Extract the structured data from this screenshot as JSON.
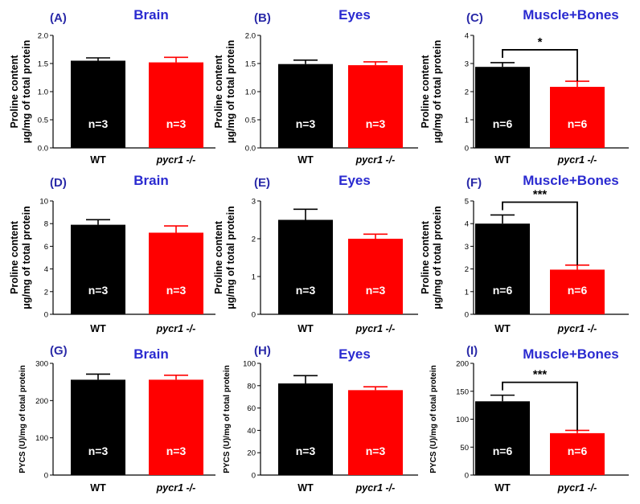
{
  "figure": {
    "categories": [
      "WT",
      "pycr1 -/-"
    ],
    "bar_colors": [
      "#000000",
      "#ff0000"
    ]
  },
  "chart_data": [
    {
      "panel": "(A)",
      "type": "bar",
      "title": "Brain",
      "ylabel": [
        "Proline content",
        "μg/mg of total protein"
      ],
      "categories": [
        "WT",
        "pycr1 -/-"
      ],
      "values": [
        1.55,
        1.52
      ],
      "errors": [
        0.05,
        0.09
      ],
      "n_labels": [
        "n=3",
        "n=3"
      ],
      "ylim": [
        0,
        2
      ],
      "yticks": [
        0,
        0.5,
        1,
        1.5,
        2
      ],
      "ytick_labels": [
        "0.0",
        "0.5",
        "1.0",
        "1.5",
        "2.0"
      ],
      "significance": null
    },
    {
      "panel": "(B)",
      "type": "bar",
      "title": "Eyes",
      "ylabel": [
        "Proline content",
        "μg/mg of total protein"
      ],
      "categories": [
        "WT",
        "pycr1 -/-"
      ],
      "values": [
        1.49,
        1.47
      ],
      "errors": [
        0.07,
        0.06
      ],
      "n_labels": [
        "n=3",
        "n=3"
      ],
      "ylim": [
        0,
        2
      ],
      "yticks": [
        0,
        0.5,
        1,
        1.5,
        2
      ],
      "ytick_labels": [
        "0.0",
        "0.5",
        "1.0",
        "1.5",
        "2.0"
      ],
      "significance": null
    },
    {
      "panel": "(C)",
      "type": "bar",
      "title": "Muscle+Bones",
      "ylabel": [
        "Proline content",
        "μg/mg of total protein"
      ],
      "categories": [
        "WT",
        "pycr1 -/-"
      ],
      "values": [
        2.88,
        2.17
      ],
      "errors": [
        0.15,
        0.2
      ],
      "n_labels": [
        "n=6",
        "n=6"
      ],
      "ylim": [
        0,
        4
      ],
      "yticks": [
        0,
        1,
        2,
        3,
        4
      ],
      "ytick_labels": [
        "0",
        "1",
        "2",
        "3",
        "4"
      ],
      "significance": "*"
    },
    {
      "panel": "(D)",
      "type": "bar",
      "title": "Brain",
      "ylabel": [
        "Proline content",
        "μg/mg of total protein"
      ],
      "categories": [
        "WT",
        "pycr1 -/-"
      ],
      "values": [
        7.9,
        7.2
      ],
      "errors": [
        0.45,
        0.6
      ],
      "n_labels": [
        "n=3",
        "n=3"
      ],
      "ylim": [
        0,
        10
      ],
      "yticks": [
        0,
        2,
        4,
        6,
        8,
        10
      ],
      "ytick_labels": [
        "0",
        "2",
        "4",
        "6",
        "8",
        "10"
      ],
      "significance": null
    },
    {
      "panel": "(E)",
      "type": "bar",
      "title": "Eyes",
      "ylabel": [
        "Proline content",
        "μg/mg of total protein"
      ],
      "categories": [
        "WT",
        "pycr1 -/-"
      ],
      "values": [
        2.5,
        2.0
      ],
      "errors": [
        0.28,
        0.12
      ],
      "n_labels": [
        "n=3",
        "n=3"
      ],
      "ylim": [
        0,
        3
      ],
      "yticks": [
        0,
        1,
        2,
        3
      ],
      "ytick_labels": [
        "0",
        "1",
        "2",
        "3"
      ],
      "significance": null
    },
    {
      "panel": "(F)",
      "type": "bar",
      "title": "Muscle+Bones",
      "ylabel": [
        "Proline content",
        "μg/mg of total protein"
      ],
      "categories": [
        "WT",
        "pycr1 -/-"
      ],
      "values": [
        4.0,
        1.97
      ],
      "errors": [
        0.38,
        0.2
      ],
      "n_labels": [
        "n=6",
        "n=6"
      ],
      "ylim": [
        0,
        5
      ],
      "yticks": [
        0,
        1,
        2,
        3,
        4,
        5
      ],
      "ytick_labels": [
        "0",
        "1",
        "2",
        "3",
        "4",
        "5"
      ],
      "significance": "***"
    },
    {
      "panel": "(G)",
      "type": "bar",
      "title": "Brain",
      "ylabel": [
        "PYCS (U)/mg of total protein"
      ],
      "categories": [
        "WT",
        "pycr1 -/-"
      ],
      "values": [
        256,
        256
      ],
      "errors": [
        15,
        12
      ],
      "n_labels": [
        "n=3",
        "n=3"
      ],
      "ylim": [
        0,
        300
      ],
      "yticks": [
        0,
        100,
        200,
        300
      ],
      "ytick_labels": [
        "0",
        "100",
        "200",
        "300"
      ],
      "significance": null
    },
    {
      "panel": "(H)",
      "type": "bar",
      "title": "Eyes",
      "ylabel": [
        "PYCS (U)/mg of total protein"
      ],
      "categories": [
        "WT",
        "pycr1 -/-"
      ],
      "values": [
        82,
        76
      ],
      "errors": [
        7,
        3
      ],
      "n_labels": [
        "n=3",
        "n=3"
      ],
      "ylim": [
        0,
        100
      ],
      "yticks": [
        0,
        20,
        40,
        60,
        80,
        100
      ],
      "ytick_labels": [
        "0",
        "20",
        "40",
        "60",
        "80",
        "100"
      ],
      "significance": null
    },
    {
      "panel": "(I)",
      "type": "bar",
      "title": "Muscle+Bones",
      "ylabel": [
        "PYCS (U)/mg of total protein"
      ],
      "categories": [
        "WT",
        "pycr1 -/-"
      ],
      "values": [
        132,
        75
      ],
      "errors": [
        11,
        5
      ],
      "n_labels": [
        "n=6",
        "n=6"
      ],
      "ylim": [
        0,
        200
      ],
      "yticks": [
        0,
        50,
        100,
        150,
        200
      ],
      "ytick_labels": [
        "0",
        "50",
        "100",
        "150",
        "200"
      ],
      "significance": "***"
    }
  ]
}
